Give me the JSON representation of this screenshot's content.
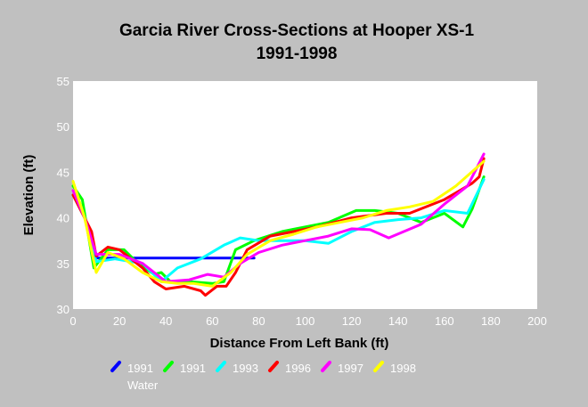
{
  "chart_data": {
    "type": "line",
    "title": "Garcia River Cross-Sections at Hooper XS-1",
    "subtitle": "1991-1998",
    "xlabel": "Distance From Left Bank (ft)",
    "ylabel": "Elevation (ft)",
    "xlim": [
      0,
      200
    ],
    "ylim": [
      30,
      55
    ],
    "x_ticks": [
      0,
      20,
      40,
      60,
      80,
      100,
      120,
      140,
      160,
      180,
      200
    ],
    "y_ticks": [
      30,
      35,
      40,
      45,
      50,
      55
    ],
    "grid": false,
    "legend_position": "bottom",
    "series": [
      {
        "name": "1991 Water",
        "color": "#0000ff",
        "points": [
          [
            9,
            35.6
          ],
          [
            78,
            35.6
          ]
        ]
      },
      {
        "name": "1991",
        "color": "#00ff00",
        "points": [
          [
            0,
            43.5
          ],
          [
            4,
            42
          ],
          [
            9,
            34.5
          ],
          [
            15,
            36.5
          ],
          [
            22,
            36.5
          ],
          [
            28,
            35
          ],
          [
            35,
            33.8
          ],
          [
            38,
            34
          ],
          [
            42,
            33
          ],
          [
            50,
            33
          ],
          [
            60,
            32.8
          ],
          [
            65,
            33
          ],
          [
            70,
            36.5
          ],
          [
            78,
            37.5
          ],
          [
            90,
            38.5
          ],
          [
            100,
            39
          ],
          [
            110,
            39.5
          ],
          [
            122,
            40.8
          ],
          [
            130,
            40.8
          ],
          [
            140,
            40.5
          ],
          [
            150,
            39.5
          ],
          [
            160,
            40.5
          ],
          [
            168,
            39
          ],
          [
            172,
            41
          ],
          [
            177,
            44.5
          ]
        ]
      },
      {
        "name": "1993",
        "color": "#00ffff",
        "points": [
          [
            0,
            42.5
          ],
          [
            5,
            40
          ],
          [
            10,
            35.2
          ],
          [
            18,
            35.5
          ],
          [
            25,
            35.2
          ],
          [
            30,
            35
          ],
          [
            38,
            33
          ],
          [
            45,
            34.5
          ],
          [
            55,
            35.5
          ],
          [
            65,
            37
          ],
          [
            72,
            37.8
          ],
          [
            80,
            37.5
          ],
          [
            90,
            37.5
          ],
          [
            100,
            37.5
          ],
          [
            110,
            37.2
          ],
          [
            120,
            38.5
          ],
          [
            130,
            39.5
          ],
          [
            140,
            39.8
          ],
          [
            150,
            40
          ],
          [
            160,
            40.8
          ],
          [
            170,
            40.5
          ],
          [
            177,
            44.2
          ]
        ]
      },
      {
        "name": "1996",
        "color": "#ff0000",
        "points": [
          [
            0,
            42.5
          ],
          [
            8,
            38.5
          ],
          [
            10,
            35.8
          ],
          [
            15,
            36.8
          ],
          [
            20,
            36.5
          ],
          [
            30,
            34.5
          ],
          [
            35,
            33
          ],
          [
            40,
            32.2
          ],
          [
            48,
            32.5
          ],
          [
            55,
            32
          ],
          [
            57,
            31.5
          ],
          [
            62,
            32.5
          ],
          [
            66,
            32.5
          ],
          [
            70,
            34
          ],
          [
            75,
            36.5
          ],
          [
            85,
            38
          ],
          [
            95,
            38.5
          ],
          [
            105,
            39
          ],
          [
            120,
            40
          ],
          [
            135,
            40.5
          ],
          [
            145,
            40.5
          ],
          [
            160,
            42
          ],
          [
            172,
            43.8
          ],
          [
            175,
            44.5
          ],
          [
            177,
            46.5
          ]
        ]
      },
      {
        "name": "1997",
        "color": "#ff00ff",
        "points": [
          [
            0,
            43
          ],
          [
            5,
            40
          ],
          [
            10,
            36
          ],
          [
            20,
            36
          ],
          [
            30,
            35
          ],
          [
            40,
            33
          ],
          [
            50,
            33.2
          ],
          [
            58,
            33.8
          ],
          [
            65,
            33.5
          ],
          [
            72,
            35
          ],
          [
            80,
            36.2
          ],
          [
            90,
            37
          ],
          [
            100,
            37.5
          ],
          [
            110,
            38
          ],
          [
            120,
            38.8
          ],
          [
            128,
            38.7
          ],
          [
            136,
            37.8
          ],
          [
            150,
            39.3
          ],
          [
            160,
            41.5
          ],
          [
            170,
            43.5
          ],
          [
            177,
            47
          ]
        ]
      },
      {
        "name": "1998",
        "color": "#ffff00",
        "points": [
          [
            0,
            44
          ],
          [
            5,
            40
          ],
          [
            10,
            34
          ],
          [
            15,
            36.2
          ],
          [
            22,
            35.5
          ],
          [
            30,
            34
          ],
          [
            38,
            33
          ],
          [
            45,
            32.8
          ],
          [
            52,
            32.8
          ],
          [
            60,
            32.5
          ],
          [
            68,
            34
          ],
          [
            75,
            36
          ],
          [
            85,
            37.5
          ],
          [
            95,
            38.2
          ],
          [
            105,
            39
          ],
          [
            115,
            39.5
          ],
          [
            125,
            40
          ],
          [
            135,
            40.8
          ],
          [
            145,
            41.2
          ],
          [
            155,
            41.8
          ],
          [
            165,
            43.5
          ],
          [
            177,
            46.2
          ]
        ]
      }
    ],
    "legend": [
      {
        "label": "1991",
        "sublabel": "Water",
        "color": "#0000ff"
      },
      {
        "label": "1991",
        "color": "#00ff00"
      },
      {
        "label": "1993",
        "color": "#00ffff"
      },
      {
        "label": "1996",
        "color": "#ff0000"
      },
      {
        "label": "1997",
        "color": "#ff00ff"
      },
      {
        "label": "1998",
        "color": "#ffff00"
      }
    ]
  }
}
